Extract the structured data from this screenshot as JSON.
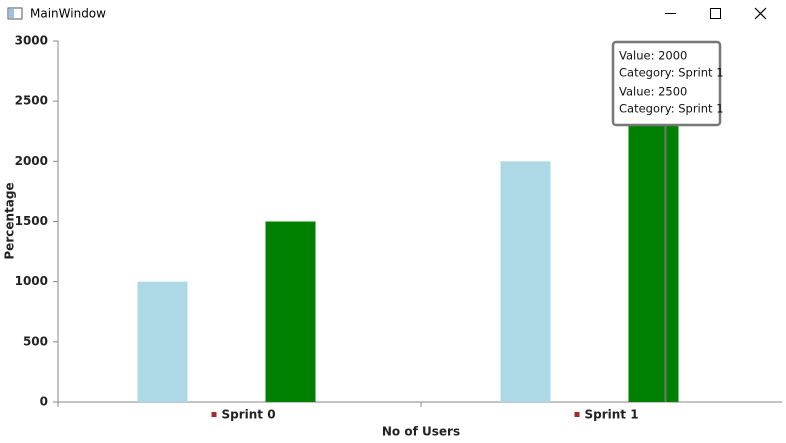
{
  "window": {
    "title": "MainWindow"
  },
  "tooltip": {
    "lines": [
      "Value: 2000",
      "Category: Sprint 1",
      "Value: 2500",
      "Category: Sprint 1"
    ]
  },
  "chart_data": {
    "type": "bar",
    "x_label": "No of Users",
    "y_label": "Percentage",
    "categories": [
      "Sprint 0",
      "Sprint 1"
    ],
    "series": [
      {
        "color": "#add8e6",
        "values": [
          1000,
          2000
        ]
      },
      {
        "color": "#008000",
        "values": [
          1500,
          2500
        ]
      }
    ],
    "ylim": [
      0,
      3000
    ],
    "yticks": [
      0,
      500,
      1000,
      1500,
      2000,
      2500,
      3000
    ],
    "grid": false
  }
}
